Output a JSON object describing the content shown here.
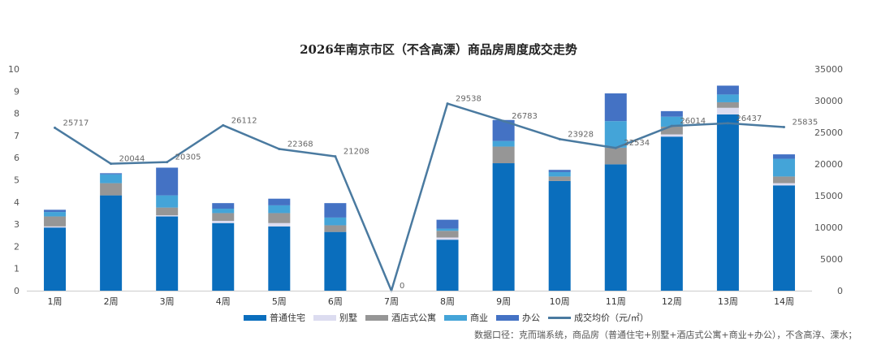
{
  "chart_data": {
    "type": "bar",
    "title": "2026年南京市区（不含高溧）商品房周度成交走势",
    "categories": [
      "1周",
      "2周",
      "3周",
      "4周",
      "5周",
      "6周",
      "7周",
      "8周",
      "9周",
      "10周",
      "11周",
      "12周",
      "13周",
      "14周"
    ],
    "ylim_left": [
      0,
      10
    ],
    "yticks_left": [
      "0",
      "1",
      "2",
      "3",
      "4",
      "5",
      "6",
      "7",
      "8",
      "9",
      "10"
    ],
    "ylim_right": [
      0,
      35000
    ],
    "yticks_right": [
      "0",
      "5000",
      "10000",
      "15000",
      "20000",
      "25000",
      "30000",
      "35000"
    ],
    "series": [
      {
        "name": "普通住宅",
        "color": "#0a6ebd",
        "values": [
          2.85,
          4.3,
          3.35,
          3.05,
          2.9,
          2.65,
          0,
          2.3,
          5.75,
          4.95,
          5.7,
          6.95,
          7.95,
          4.75
        ]
      },
      {
        "name": "别墅",
        "color": "#dcdcf0",
        "values": [
          0.05,
          0.0,
          0.05,
          0.1,
          0.15,
          0.0,
          0,
          0.1,
          0.0,
          0.0,
          0.0,
          0.1,
          0.3,
          0.1
        ]
      },
      {
        "name": "酒店式公寓",
        "color": "#969696",
        "values": [
          0.45,
          0.55,
          0.35,
          0.35,
          0.45,
          0.3,
          0,
          0.3,
          0.75,
          0.2,
          0.75,
          0.35,
          0.25,
          0.3
        ]
      },
      {
        "name": "商业",
        "color": "#44a4d8",
        "values": [
          0.2,
          0.4,
          0.55,
          0.2,
          0.35,
          0.35,
          0,
          0.1,
          0.25,
          0.2,
          1.2,
          0.45,
          0.35,
          0.8
        ]
      },
      {
        "name": "办公",
        "color": "#4472c4",
        "values": [
          0.1,
          0.05,
          1.25,
          0.25,
          0.3,
          0.65,
          0,
          0.4,
          0.95,
          0.1,
          1.25,
          0.25,
          0.4,
          0.2
        ]
      }
    ],
    "line": {
      "name": "成交均价（元/㎡）",
      "color": "#4a7aa0",
      "values": [
        25717,
        20044,
        20305,
        26112,
        22368,
        21208,
        0,
        29538,
        26783,
        23928,
        22534,
        26014,
        26437,
        25835
      ],
      "labels": [
        "25717",
        "20044",
        "20305",
        "26112",
        "22368",
        "21208",
        "0",
        "29538",
        "26783",
        "23928",
        "22534",
        "26014",
        "26437",
        "25835"
      ]
    },
    "legend_position": "bottom"
  },
  "footnote": "数据口径：克而瑞系统，商品房（普通住宅+别墅+酒店式公寓+商业+办公），不含高淳、溧水；"
}
